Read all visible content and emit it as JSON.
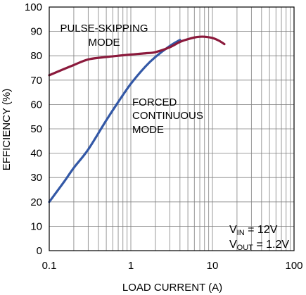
{
  "chart_data": {
    "type": "line",
    "title": "",
    "xlabel": "LOAD CURRENT (A)",
    "ylabel": "EFFICIENCY (%)",
    "x_scale": "log",
    "xlim": [
      0.1,
      100
    ],
    "ylim": [
      0,
      100
    ],
    "grid": true,
    "x_ticks": [
      "0.1",
      "1",
      "10",
      "100"
    ],
    "y_ticks": [
      "0",
      "10",
      "20",
      "30",
      "40",
      "50",
      "60",
      "70",
      "80",
      "90",
      "100"
    ],
    "series": [
      {
        "name": "PULSE-SKIPPING MODE",
        "color": "#8b1a3c",
        "x": [
          0.1,
          0.15,
          0.2,
          0.3,
          0.5,
          0.7,
          1,
          1.5,
          2,
          3,
          4,
          5,
          6,
          7,
          8,
          10,
          12,
          14
        ],
        "y": [
          72,
          74.5,
          76.2,
          78.5,
          79.5,
          80,
          80.5,
          81,
          81.5,
          83.5,
          85.7,
          86.8,
          87.5,
          87.8,
          87.8,
          87.3,
          86.2,
          84.8
        ]
      },
      {
        "name": "FORCED CONTINUOUS MODE",
        "color": "#3358a6",
        "x": [
          0.1,
          0.15,
          0.2,
          0.3,
          0.5,
          0.7,
          1,
          1.5,
          2,
          3,
          4
        ],
        "y": [
          20,
          28,
          34,
          41.5,
          53.5,
          61,
          68.5,
          75.5,
          79.5,
          84,
          86.5
        ]
      }
    ],
    "annotations": {
      "pulse_line1": "PULSE-SKIPPING",
      "pulse_line2": "MODE",
      "forced_line1": "FORCED",
      "forced_line2": "CONTINUOUS",
      "forced_line3": "MODE"
    },
    "conditions": {
      "vin_main": "V",
      "vin_sub": "IN",
      "vin_value": " = 12V",
      "vout_main": "V",
      "vout_sub": "OUT",
      "vout_value": " = 1.2V"
    }
  }
}
